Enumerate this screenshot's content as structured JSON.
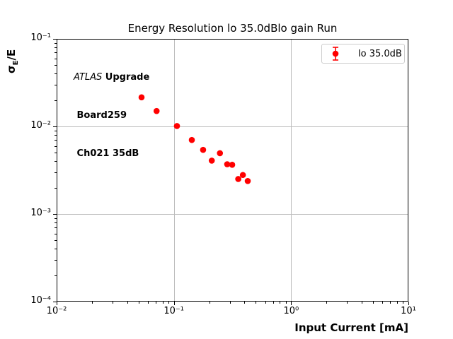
{
  "figure": {
    "annotation": {
      "line1_italic": "ATLAS",
      "line1_bold": " Upgrade",
      "line2": " Board259",
      "line3": " Ch021 35dB"
    },
    "ylabel_rich": {
      "sigma": "σ",
      "sub": "E",
      "rest": "/E"
    }
  },
  "chart_data": {
    "type": "scatter",
    "title": "Energy Resolution lo 35.0dBlo gain Run",
    "xlabel": "Input Current [mA]",
    "ylabel": "σ_E/E",
    "x_scale": "log",
    "y_scale": "log",
    "xlim": [
      0.01,
      10
    ],
    "ylim": [
      0.0001,
      0.1
    ],
    "grid": true,
    "grid_color": "#bdbdbd",
    "frame_color": "#000000",
    "x_ticks": [
      {
        "value": 0.01,
        "label": "10⁻²"
      },
      {
        "value": 0.1,
        "label": "10⁻¹"
      },
      {
        "value": 1,
        "label": "10⁰"
      },
      {
        "value": 10,
        "label": "10¹"
      }
    ],
    "y_ticks": [
      {
        "value": 0.1,
        "label": "10⁻¹"
      },
      {
        "value": 0.01,
        "label": "10⁻²"
      },
      {
        "value": 0.001,
        "label": "10⁻³"
      },
      {
        "value": 0.0001,
        "label": "10⁻⁴"
      }
    ],
    "x_gridlines": [
      0.1,
      1
    ],
    "y_gridlines": [
      0.01,
      0.001
    ],
    "legend_entries": [
      {
        "label": "lo 35.0dB",
        "color": "#ff0000",
        "marker": "circle-errorbar"
      }
    ],
    "series": [
      {
        "name": "lo 35.0dB",
        "color": "#ff0000",
        "marker": "circle",
        "x": [
          0.053,
          0.0712,
          0.1062,
          0.1422,
          0.1775,
          0.2104,
          0.247,
          0.2848,
          0.3142,
          0.354,
          0.3876,
          0.4264
        ],
        "y": [
          0.0215,
          0.015,
          0.0101,
          0.007,
          0.0054,
          0.00407,
          0.00494,
          0.0037,
          0.00365,
          0.00251,
          0.00279,
          0.00238
        ]
      }
    ]
  }
}
